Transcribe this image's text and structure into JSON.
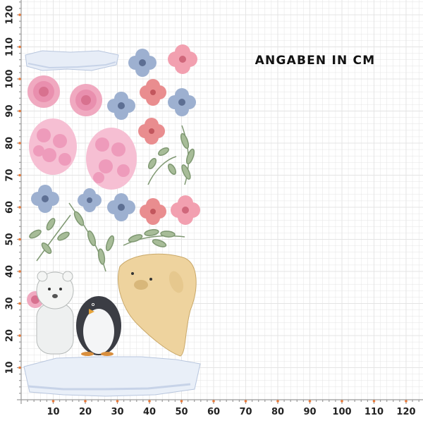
{
  "title": "ANGABEN IN CM",
  "x_axis": {
    "ticks": [
      "10",
      "20",
      "30",
      "40",
      "50",
      "60",
      "70",
      "80",
      "90",
      "100",
      "110",
      "120"
    ]
  },
  "y_axis": {
    "ticks": [
      "10",
      "20",
      "30",
      "40",
      "50",
      "60",
      "70",
      "80",
      "90",
      "100",
      "110",
      "120"
    ]
  },
  "colors": {
    "grid": "#e4e4e4",
    "tick_marker": "#e87a3a",
    "ruler": "#9a9a9a",
    "ice": "#dfe7f3",
    "rose": "#e98fae",
    "blue_flower": "#8ea0c2",
    "coral_flower": "#e98d8f",
    "leaf": "#8fa683",
    "seal": "#ecd19a",
    "penguin": "#3b3d44"
  },
  "illustrations": [
    "ice-floe",
    "rose",
    "blue-flower",
    "coral-flower",
    "hydrangea",
    "leaf-branch",
    "polar-bear",
    "penguin",
    "walrus"
  ]
}
